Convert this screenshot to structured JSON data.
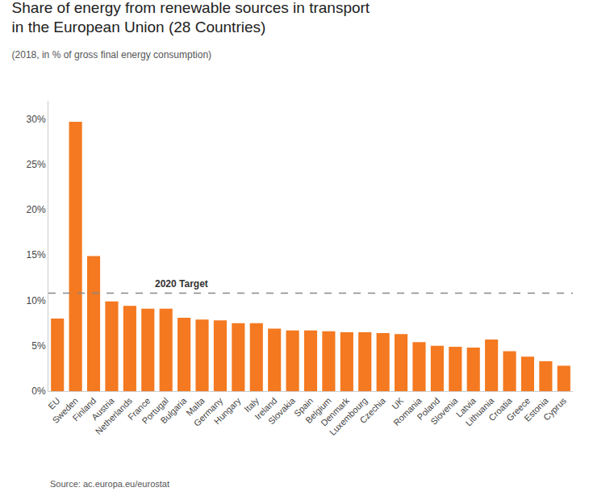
{
  "chart_data": {
    "type": "bar",
    "title": "Share of energy from renewable sources in transport\nin the European Union (28 Countries)",
    "subtitle": "(2018, in % of gross final energy consumption)",
    "source": "Source: ac.europa.eu/eurostat",
    "reference_line": {
      "value": 10.8,
      "label": "2020 Target"
    },
    "categories": [
      "EU",
      "Sweden",
      "Finland",
      "Austria",
      "Netherlands",
      "France",
      "Portugal",
      "Bulgaria",
      "Malta",
      "Germany",
      "Hungary",
      "Italy",
      "Ireland",
      "Slovakia",
      "Spain",
      "Belgium",
      "Denmark",
      "Luxembourg",
      "Czechia",
      "UK",
      "Romania",
      "Poland",
      "Slovenia",
      "Latvia",
      "Lithuania",
      "Croatia",
      "Greece",
      "Estonia",
      "Cyprus"
    ],
    "values": [
      8.0,
      29.7,
      14.9,
      9.9,
      9.4,
      9.1,
      9.1,
      8.1,
      7.9,
      7.8,
      7.5,
      7.5,
      6.9,
      6.7,
      6.7,
      6.6,
      6.5,
      6.5,
      6.4,
      6.3,
      5.4,
      5.0,
      4.9,
      4.8,
      5.7,
      4.4,
      3.8,
      3.3,
      2.8
    ],
    "color": "#F47920",
    "ylim": [
      0,
      32
    ],
    "yticks": [
      {
        "value": 0,
        "label": "0%"
      },
      {
        "value": 5,
        "label": "5%"
      },
      {
        "value": 10,
        "label": "10%"
      },
      {
        "value": 15,
        "label": "15%"
      },
      {
        "value": 20,
        "label": "20%"
      },
      {
        "value": 25,
        "label": "25%"
      },
      {
        "value": 30,
        "label": "30%"
      }
    ],
    "grid": false
  }
}
